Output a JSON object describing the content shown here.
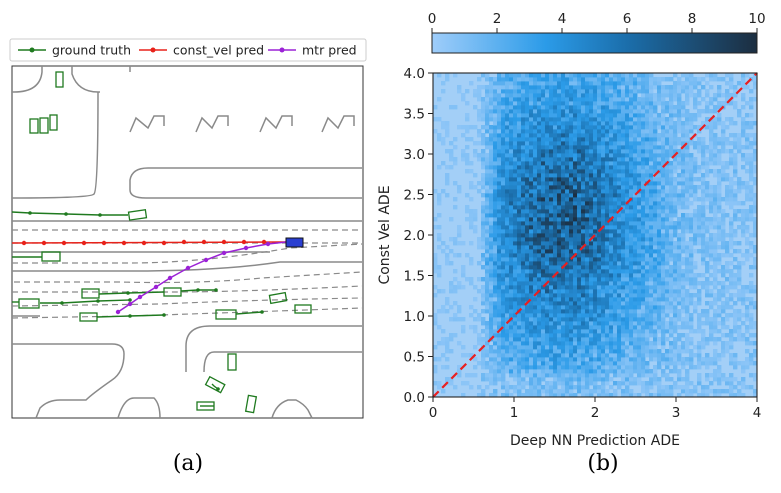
{
  "chart_data": [
    {
      "type": "line",
      "panel_label": "(a)",
      "legend": [
        "ground truth",
        "const_vel pred",
        "mtr pred"
      ],
      "colors": {
        "ground_truth": "#1f7a1f",
        "const_vel": "#e8221a",
        "mtr": "#9b22d6",
        "agent_box": "#2a3fd1",
        "road": "#8a8a8a",
        "lane": "#8a8a8a"
      }
    },
    {
      "type": "heatmap",
      "panel_label": "(b)",
      "xlabel": "Deep NN Prediction ADE",
      "ylabel": "Const Vel ADE",
      "xlim": [
        0,
        4
      ],
      "ylim": [
        0,
        4
      ],
      "xticks": [
        "0",
        "1",
        "2",
        "3",
        "4"
      ],
      "yticks": [
        "0.0",
        "0.5",
        "1.0",
        "1.5",
        "2.0",
        "2.5",
        "3.0",
        "3.5",
        "4.0"
      ],
      "colorbar": {
        "min": 0,
        "max": 10,
        "ticks": [
          "0",
          "2",
          "4",
          "6",
          "8",
          "10"
        ],
        "position": "top"
      },
      "reference_line": {
        "x": [
          0,
          4
        ],
        "y": [
          0,
          4
        ],
        "style": "dashed",
        "color": "#e82020"
      },
      "distribution_peak": {
        "x": 1.6,
        "y": 2.2
      }
    }
  ]
}
